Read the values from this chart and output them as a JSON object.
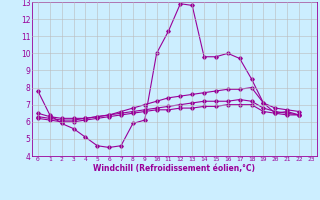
{
  "xlabel": "Windchill (Refroidissement éolien,°C)",
  "xlim": [
    -0.5,
    23.5
  ],
  "ylim": [
    4,
    13
  ],
  "xticks": [
    0,
    1,
    2,
    3,
    4,
    5,
    6,
    7,
    8,
    9,
    10,
    11,
    12,
    13,
    14,
    15,
    16,
    17,
    18,
    19,
    20,
    21,
    22,
    23
  ],
  "yticks": [
    4,
    5,
    6,
    7,
    8,
    9,
    10,
    11,
    12,
    13
  ],
  "bg_color": "#cceeff",
  "line_color": "#990099",
  "grid_color": "#bbbbbb",
  "series": [
    [
      7.8,
      6.4,
      5.9,
      5.6,
      5.1,
      4.6,
      4.5,
      4.6,
      5.9,
      6.1,
      10.0,
      11.3,
      12.9,
      12.8,
      9.8,
      9.8,
      10.0,
      9.7,
      8.5,
      7.1,
      6.5,
      6.6,
      6.4
    ],
    [
      6.5,
      6.3,
      6.2,
      6.2,
      6.2,
      6.3,
      6.4,
      6.6,
      6.8,
      7.0,
      7.2,
      7.4,
      7.5,
      7.6,
      7.7,
      7.8,
      7.9,
      7.9,
      8.0,
      7.1,
      6.8,
      6.7,
      6.6
    ],
    [
      6.3,
      6.2,
      6.1,
      6.1,
      6.2,
      6.3,
      6.4,
      6.5,
      6.6,
      6.7,
      6.8,
      6.9,
      7.0,
      7.1,
      7.2,
      7.2,
      7.2,
      7.3,
      7.2,
      6.8,
      6.6,
      6.5,
      6.4
    ],
    [
      6.2,
      6.1,
      6.0,
      6.0,
      6.1,
      6.2,
      6.3,
      6.4,
      6.5,
      6.6,
      6.7,
      6.7,
      6.8,
      6.8,
      6.9,
      6.9,
      7.0,
      7.0,
      7.0,
      6.6,
      6.5,
      6.4,
      6.4
    ]
  ],
  "x_values": [
    0,
    1,
    2,
    3,
    4,
    5,
    6,
    7,
    8,
    9,
    10,
    11,
    12,
    13,
    14,
    15,
    16,
    17,
    18,
    19,
    20,
    21,
    22
  ]
}
